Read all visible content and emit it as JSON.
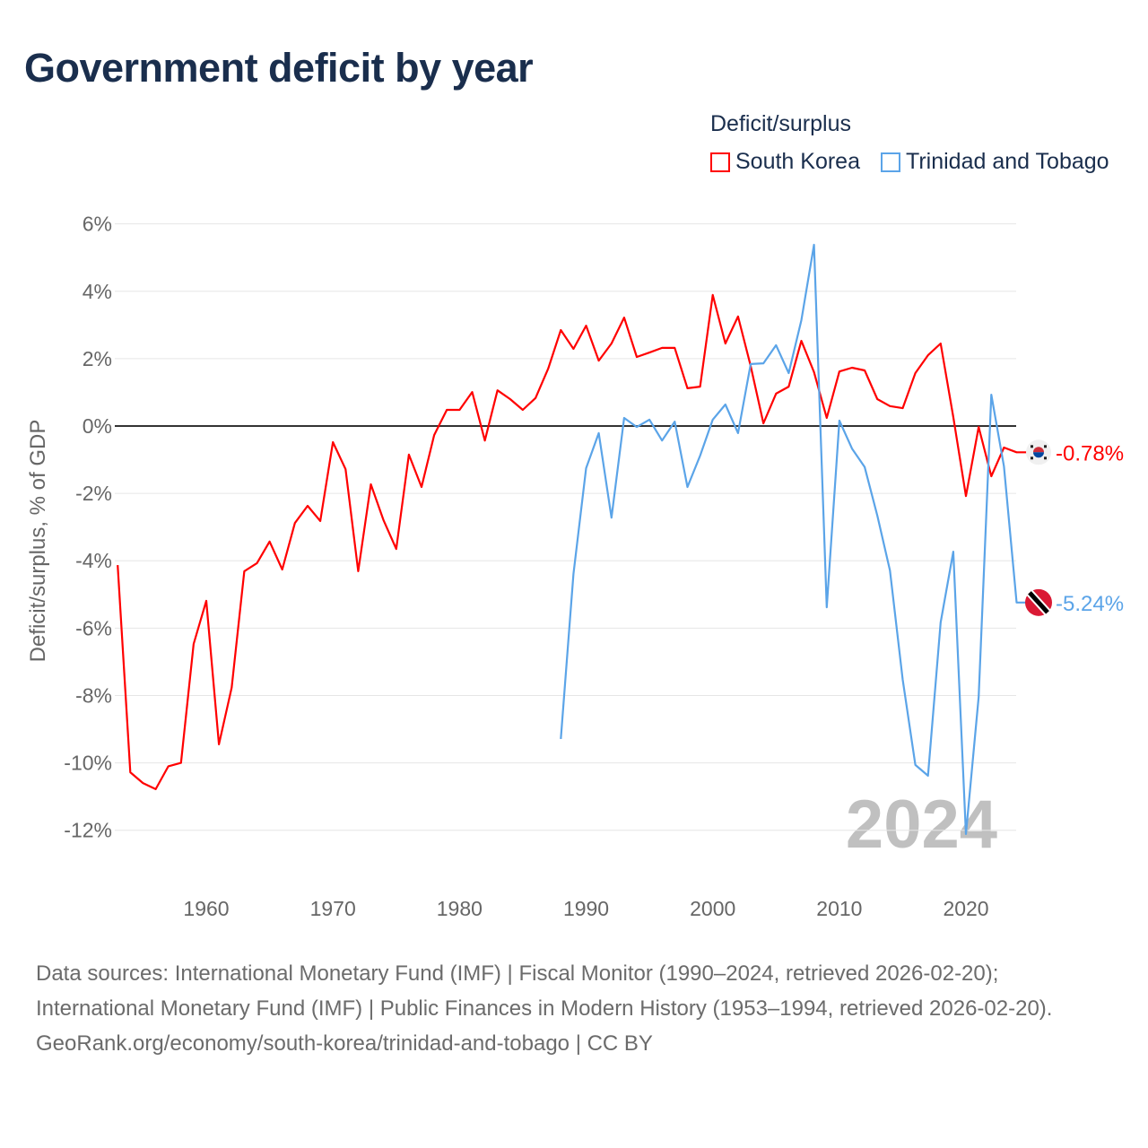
{
  "title": "Government deficit by year",
  "legend": {
    "title": "Deficit/surplus",
    "items": [
      "South Korea",
      "Trinidad and Tobago"
    ]
  },
  "sources": {
    "line1": "Data sources: International Monetary Fund (IMF) | Fiscal Monitor (1990–2024, retrieved 2026-02-20); International Monetary Fund (IMF) | Public Finances in Modern History (1953–1994, retrieved 2026-02-20).",
    "line2": "GeoRank.org/economy/south-korea/trinidad-and-tobago | CC BY"
  },
  "chart_data": {
    "type": "line",
    "title": "Government deficit by year",
    "ylabel": "Deficit/surplus, % of GDP",
    "xlabel": "",
    "xlim": [
      1953,
      2024
    ],
    "ylim": [
      -12,
      6
    ],
    "xticks": [
      1960,
      1970,
      1980,
      1990,
      2000,
      2010,
      2020
    ],
    "yticks": [
      6,
      4,
      2,
      0,
      -2,
      -4,
      -6,
      -8,
      -10,
      -12
    ],
    "ytick_labels": [
      "6%",
      "4%",
      "2%",
      "0%",
      "-2%",
      "-4%",
      "-6%",
      "-8%",
      "-10%",
      "-12%"
    ],
    "grid": true,
    "legend_position": "top-right",
    "year_watermark": "2024",
    "series": [
      {
        "name": "South Korea",
        "color": "#ff0000",
        "end_label": "-0.78%",
        "start_year": 1953,
        "values": [
          -4.13,
          -10.28,
          -10.6,
          -10.78,
          -10.1,
          -10,
          -6.47,
          -5.19,
          -9.45,
          -7.77,
          -4.31,
          -4.07,
          -3.43,
          -4.26,
          -2.88,
          -2.37,
          -2.82,
          -0.48,
          -1.28,
          -4.31,
          -1.73,
          -2.8,
          -3.65,
          -0.85,
          -1.81,
          -0.27,
          0.48,
          0.48,
          1.01,
          -0.43,
          1.06,
          0.8,
          0.48,
          0.83,
          1.7,
          2.85,
          2.29,
          2.98,
          1.94,
          2.45,
          3.22,
          2.05,
          2.18,
          2.32,
          2.32,
          1.12,
          1.17,
          3.89,
          2.45,
          3.25,
          1.78,
          0.08,
          0.96,
          1.17,
          2.53,
          1.6,
          0.24,
          1.62,
          1.73,
          1.65,
          0.8,
          0.59,
          0.53,
          1.57,
          2.1,
          2.45,
          0.27,
          -2.08,
          -0.03,
          -1.49,
          -0.64,
          -0.78
        ]
      },
      {
        "name": "Trinidad and Tobago",
        "color": "#5ba4e8",
        "end_label": "-5.24%",
        "start_year": 1988,
        "values": [
          -9.29,
          -4.39,
          -1.25,
          -0.21,
          -2.72,
          0.24,
          -0.03,
          0.19,
          -0.43,
          0.13,
          -1.81,
          -0.88,
          0.19,
          0.64,
          -0.21,
          1.84,
          1.86,
          2.4,
          1.57,
          3.14,
          5.38,
          -5.38,
          0.16,
          -0.67,
          -1.22,
          -2.66,
          -4.29,
          -7.53,
          -10.06,
          -10.38,
          -5.83,
          -3.73,
          -12.11,
          -8.04,
          0.93,
          -1.2,
          -5.24
        ]
      }
    ]
  }
}
